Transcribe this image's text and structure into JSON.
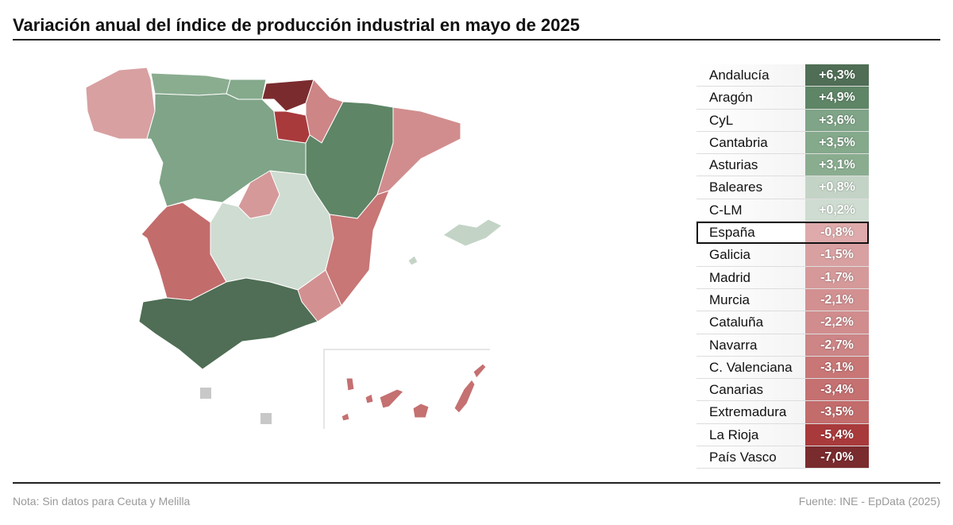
{
  "title": "Variación anual del índice de producción industrial en mayo de 2025",
  "chart_data": {
    "type": "choropleth-map-with-table",
    "title": "Variación anual del índice de producción industrial en mayo de 2025",
    "unit": "%",
    "rows": [
      {
        "region": "Andalucía",
        "value": 6.3,
        "label": "+6,3%",
        "color": "#4f6e55"
      },
      {
        "region": "Aragón",
        "value": 4.9,
        "label": "+4,9%",
        "color": "#5e8566"
      },
      {
        "region": "CyL",
        "value": 3.6,
        "label": "+3,6%",
        "color": "#7fa487"
      },
      {
        "region": "Cantabria",
        "value": 3.5,
        "label": "+3,5%",
        "color": "#84a98b"
      },
      {
        "region": "Asturias",
        "value": 3.1,
        "label": "+3,1%",
        "color": "#8aad90"
      },
      {
        "region": "Baleares",
        "value": 0.8,
        "label": "+0,8%",
        "color": "#c3d4c6"
      },
      {
        "region": "C-LM",
        "value": 0.2,
        "label": "+0,2%",
        "color": "#cfdcd1"
      },
      {
        "region": "España",
        "value": -0.8,
        "label": "-0,8%",
        "color": "#deaaab",
        "highlight": true
      },
      {
        "region": "Galicia",
        "value": -1.5,
        "label": "-1,5%",
        "color": "#d8a0a1"
      },
      {
        "region": "Madrid",
        "value": -1.7,
        "label": "-1,7%",
        "color": "#d5999a"
      },
      {
        "region": "Murcia",
        "value": -2.1,
        "label": "-2,1%",
        "color": "#d39091"
      },
      {
        "region": "Cataluña",
        "value": -2.2,
        "label": "-2,2%",
        "color": "#d18d8e"
      },
      {
        "region": "Navarra",
        "value": -2.7,
        "label": "-2,7%",
        "color": "#cd8586"
      },
      {
        "region": "C. Valenciana",
        "value": -3.1,
        "label": "-3,1%",
        "color": "#c87676"
      },
      {
        "region": "Canarias",
        "value": -3.4,
        "label": "-3,4%",
        "color": "#c57071"
      },
      {
        "region": "Extremadura",
        "value": -3.5,
        "label": "-3,5%",
        "color": "#c36c6c"
      },
      {
        "region": "La Rioja",
        "value": -5.4,
        "label": "-5,4%",
        "color": "#a93a3c"
      },
      {
        "region": "País Vasco",
        "value": -7.0,
        "label": "-7,0%",
        "color": "#7a2b2e"
      }
    ],
    "no_data_color": "#c8c8c8"
  },
  "footer": {
    "note": "Nota: Sin datos para Ceuta y Melilla",
    "source": "Fuente: INE - EpData (2025)"
  }
}
